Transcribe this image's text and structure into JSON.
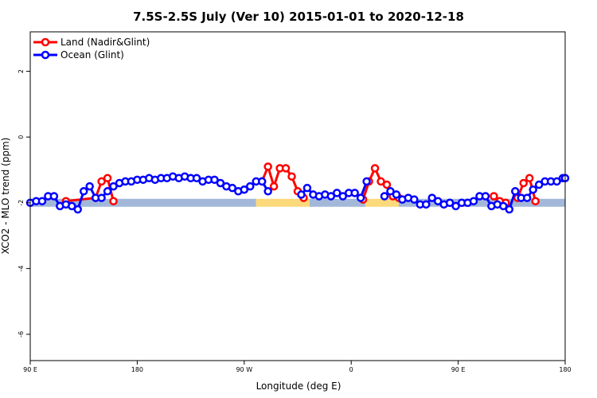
{
  "chart_data": {
    "type": "line",
    "title": "7.5S-2.5S July (Ver 10)   2015-01-01 to 2020-12-18",
    "xlabel": "Longitude (deg E)",
    "ylabel": "XCO2 - MLO trend (ppm)",
    "x_ticks": [
      {
        "value": 0,
        "label": "90 E"
      },
      {
        "value": 90,
        "label": "180"
      },
      {
        "value": 180,
        "label": "90 W"
      },
      {
        "value": 270,
        "label": "0"
      },
      {
        "value": 360,
        "label": "90 E"
      },
      {
        "value": 450,
        "label": "180"
      }
    ],
    "y_ticks": [
      {
        "value": 2,
        "label": "2"
      },
      {
        "value": 0,
        "label": "0"
      },
      {
        "value": -2,
        "label": "-2"
      },
      {
        "value": -4,
        "label": "-4"
      },
      {
        "value": -6,
        "label": "-6"
      }
    ],
    "xlim": [
      0,
      450
    ],
    "ylim": [
      -6.8,
      3.2
    ],
    "legend_position": "top-left",
    "series": [
      {
        "name": "Land (Nadir&Glint)",
        "color": "#ff0000",
        "segments": [
          [
            [
              30,
              -1.95
            ],
            [
              55,
              -1.85
            ],
            [
              60,
              -1.35
            ],
            [
              65,
              -1.25
            ],
            [
              70,
              -1.95
            ]
          ],
          [
            [
              195,
              -1.35
            ],
            [
              200,
              -0.9
            ],
            [
              205,
              -1.5
            ],
            [
              210,
              -0.95
            ],
            [
              215,
              -0.95
            ],
            [
              220,
              -1.2
            ],
            [
              225,
              -1.65
            ],
            [
              230,
              -1.85
            ]
          ],
          [
            [
              280,
              -1.9
            ],
            [
              285,
              -1.35
            ],
            [
              290,
              -0.95
            ],
            [
              295,
              -1.35
            ],
            [
              300,
              -1.45
            ],
            [
              305,
              -1.8
            ],
            [
              310,
              -1.85
            ]
          ],
          [
            [
              390,
              -1.8
            ],
            [
              395,
              -1.95
            ],
            [
              400,
              -2.0
            ]
          ],
          [
            [
              410,
              -1.85
            ],
            [
              415,
              -1.4
            ],
            [
              420,
              -1.25
            ],
            [
              425,
              -1.95
            ]
          ]
        ]
      },
      {
        "name": "Ocean (Glint)",
        "color": "#0000ff",
        "segments": [
          [
            [
              0,
              -2.0
            ],
            [
              5,
              -1.95
            ],
            [
              10,
              -1.95
            ],
            [
              15,
              -1.8
            ],
            [
              20,
              -1.8
            ],
            [
              25,
              -2.1
            ],
            [
              30,
              -2.05
            ],
            [
              35,
              -2.1
            ],
            [
              40,
              -2.2
            ],
            [
              45,
              -1.65
            ],
            [
              50,
              -1.5
            ],
            [
              55,
              -1.85
            ],
            [
              60,
              -1.85
            ],
            [
              65,
              -1.65
            ],
            [
              70,
              -1.5
            ],
            [
              75,
              -1.4
            ],
            [
              80,
              -1.35
            ],
            [
              85,
              -1.35
            ],
            [
              90,
              -1.3
            ],
            [
              95,
              -1.3
            ],
            [
              100,
              -1.25
            ],
            [
              105,
              -1.3
            ],
            [
              110,
              -1.25
            ],
            [
              115,
              -1.25
            ],
            [
              120,
              -1.2
            ],
            [
              125,
              -1.25
            ],
            [
              130,
              -1.2
            ],
            [
              135,
              -1.25
            ],
            [
              140,
              -1.25
            ],
            [
              145,
              -1.35
            ],
            [
              150,
              -1.3
            ],
            [
              155,
              -1.3
            ],
            [
              160,
              -1.4
            ],
            [
              165,
              -1.5
            ],
            [
              170,
              -1.55
            ],
            [
              175,
              -1.65
            ],
            [
              180,
              -1.6
            ],
            [
              185,
              -1.5
            ],
            [
              190,
              -1.35
            ],
            [
              195,
              -1.35
            ],
            [
              200,
              -1.65
            ]
          ],
          [
            [
              228,
              -1.75
            ],
            [
              233,
              -1.55
            ],
            [
              238,
              -1.75
            ],
            [
              243,
              -1.8
            ],
            [
              248,
              -1.75
            ],
            [
              253,
              -1.8
            ],
            [
              258,
              -1.7
            ],
            [
              263,
              -1.8
            ],
            [
              268,
              -1.7
            ],
            [
              273,
              -1.7
            ],
            [
              278,
              -1.85
            ],
            [
              283,
              -1.35
            ]
          ],
          [
            [
              298,
              -1.8
            ],
            [
              303,
              -1.65
            ],
            [
              308,
              -1.75
            ],
            [
              313,
              -1.9
            ],
            [
              318,
              -1.85
            ],
            [
              323,
              -1.9
            ],
            [
              328,
              -2.05
            ],
            [
              333,
              -2.05
            ],
            [
              338,
              -1.85
            ],
            [
              343,
              -1.95
            ],
            [
              348,
              -2.05
            ],
            [
              353,
              -2.0
            ],
            [
              358,
              -2.1
            ],
            [
              363,
              -2.0
            ],
            [
              368,
              -2.0
            ],
            [
              373,
              -1.95
            ],
            [
              378,
              -1.8
            ],
            [
              383,
              -1.8
            ],
            [
              388,
              -2.1
            ],
            [
              393,
              -2.05
            ],
            [
              398,
              -2.1
            ],
            [
              403,
              -2.2
            ],
            [
              408,
              -1.65
            ],
            [
              413,
              -1.85
            ],
            [
              418,
              -1.85
            ],
            [
              423,
              -1.6
            ],
            [
              428,
              -1.45
            ],
            [
              433,
              -1.35
            ],
            [
              438,
              -1.35
            ],
            [
              443,
              -1.35
            ],
            [
              448,
              -1.25
            ],
            [
              450,
              -1.25
            ]
          ]
        ]
      }
    ],
    "surface_bar": {
      "y": -2.0,
      "colors": {
        "ocean": "#a3b8d9",
        "land": "#fcd97a"
      },
      "segments": [
        {
          "from": 0,
          "to": 190,
          "type": "ocean"
        },
        {
          "from": 190,
          "to": 235,
          "type": "land"
        },
        {
          "from": 235,
          "to": 282,
          "type": "ocean"
        },
        {
          "from": 282,
          "to": 310,
          "type": "land"
        },
        {
          "from": 310,
          "to": 450,
          "type": "ocean"
        }
      ]
    }
  }
}
